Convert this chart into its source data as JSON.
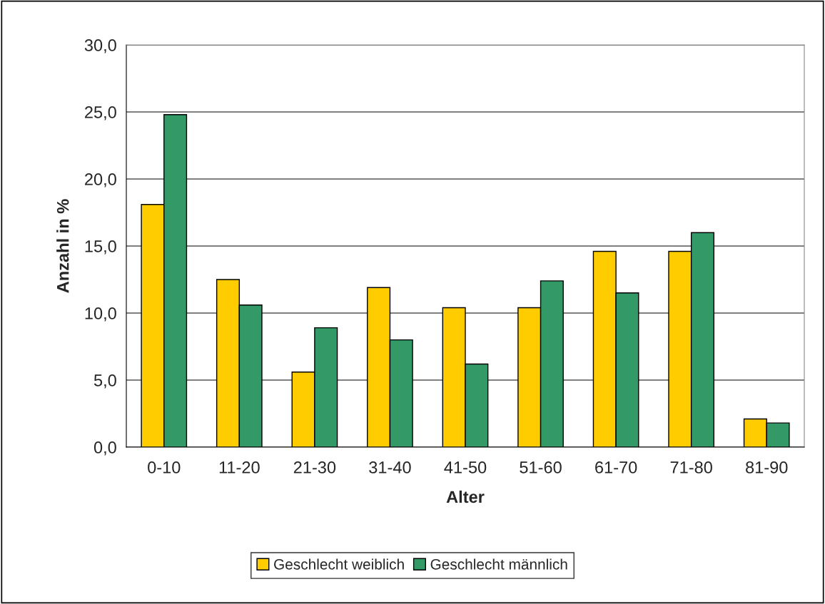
{
  "chart_data": {
    "type": "bar",
    "xlabel": "Alter",
    "ylabel": "Anzahl in %",
    "categories": [
      "0-10",
      "11-20",
      "21-30",
      "31-40",
      "41-50",
      "51-60",
      "61-70",
      "71-80",
      "81-90"
    ],
    "series": [
      {
        "name": "Geschlecht weiblich",
        "color": "#ffcc00",
        "values": [
          18.1,
          12.5,
          5.6,
          11.9,
          10.4,
          10.4,
          14.6,
          14.6,
          2.1
        ]
      },
      {
        "name": "Geschlecht männlich",
        "color": "#339966",
        "values": [
          24.8,
          10.6,
          8.9,
          8.0,
          6.2,
          12.4,
          11.5,
          16.0,
          1.8
        ]
      }
    ],
    "ylim": [
      0,
      30
    ],
    "yticks": [
      {
        "value": 0,
        "label": "0,0"
      },
      {
        "value": 5,
        "label": "5,0"
      },
      {
        "value": 10,
        "label": "10,0"
      },
      {
        "value": 15,
        "label": "15,0"
      },
      {
        "value": 20,
        "label": "20,0"
      },
      {
        "value": 25,
        "label": "25,0"
      },
      {
        "value": 30,
        "label": "30,0"
      }
    ],
    "grid": "y",
    "legend": "bottom"
  }
}
